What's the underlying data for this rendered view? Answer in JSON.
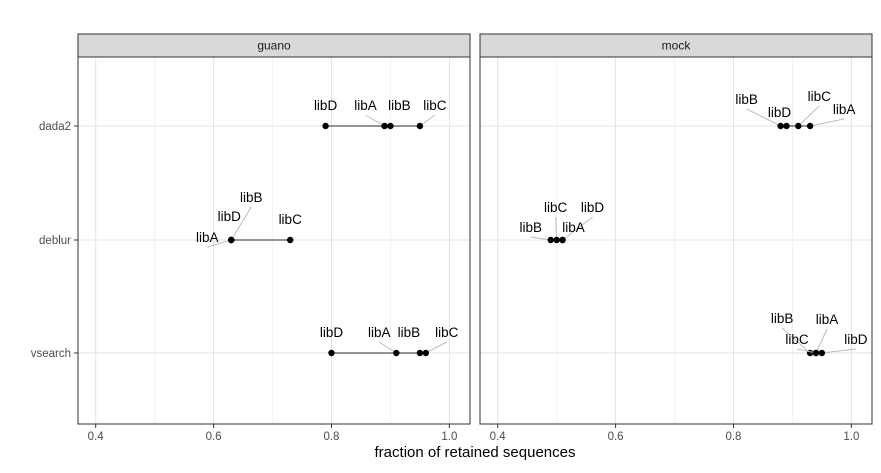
{
  "chart_data": {
    "type": "scatter",
    "title": "",
    "xlabel": "fraction of retained sequences",
    "ylabel": "",
    "xlim": [
      0.37,
      1.035
    ],
    "x_ticks": [
      0.4,
      0.6,
      0.8,
      1.0
    ],
    "x_tick_labels": [
      "0.4",
      "0.6",
      "0.8",
      "1.0"
    ],
    "categories": [
      "dada2",
      "deblur",
      "vsearch"
    ],
    "grid": true,
    "facets": [
      {
        "name": "guano",
        "rows": [
          {
            "method": "dada2",
            "points": [
              {
                "label": "libD",
                "x": 0.79
              },
              {
                "label": "libA",
                "x": 0.89
              },
              {
                "label": "libB",
                "x": 0.9
              },
              {
                "label": "libC",
                "x": 0.95
              }
            ]
          },
          {
            "method": "deblur",
            "points": [
              {
                "label": "libA",
                "x": 0.63
              },
              {
                "label": "libD",
                "x": 0.63
              },
              {
                "label": "libB",
                "x": 0.63
              },
              {
                "label": "libC",
                "x": 0.73
              }
            ]
          },
          {
            "method": "vsearch",
            "points": [
              {
                "label": "libD",
                "x": 0.8
              },
              {
                "label": "libA",
                "x": 0.91
              },
              {
                "label": "libB",
                "x": 0.95
              },
              {
                "label": "libC",
                "x": 0.96
              }
            ]
          }
        ]
      },
      {
        "name": "mock",
        "rows": [
          {
            "method": "dada2",
            "points": [
              {
                "label": "libB",
                "x": 0.88
              },
              {
                "label": "libD",
                "x": 0.89
              },
              {
                "label": "libC",
                "x": 0.91
              },
              {
                "label": "libA",
                "x": 0.93
              }
            ]
          },
          {
            "method": "deblur",
            "points": [
              {
                "label": "libB",
                "x": 0.49
              },
              {
                "label": "libC",
                "x": 0.5
              },
              {
                "label": "libD",
                "x": 0.51
              },
              {
                "label": "libA",
                "x": 0.51
              }
            ]
          },
          {
            "method": "vsearch",
            "points": [
              {
                "label": "libB",
                "x": 0.93
              },
              {
                "label": "libC",
                "x": 0.94
              },
              {
                "label": "libA",
                "x": 0.94
              },
              {
                "label": "libD",
                "x": 0.95
              }
            ]
          }
        ]
      }
    ]
  }
}
